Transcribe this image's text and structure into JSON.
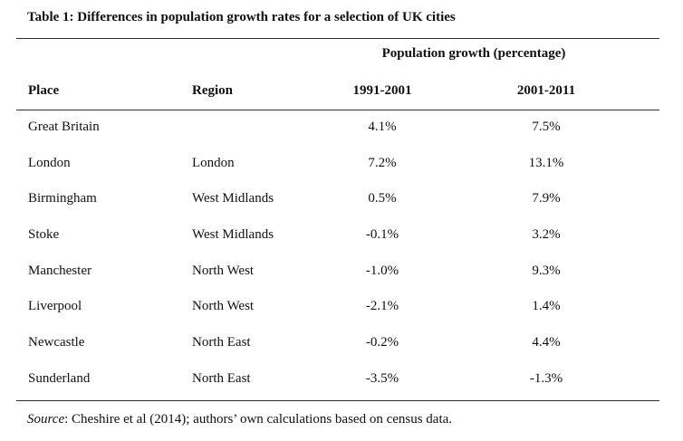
{
  "table": {
    "caption": "Table 1: Differences in population growth rates for a selection of UK cities",
    "group_header": "Population growth (percentage)",
    "columns": {
      "place": "Place",
      "region": "Region",
      "period1": "1991-2001",
      "period2": "2001-2011"
    },
    "rows": [
      {
        "place": "Great Britain",
        "region": "",
        "g1": "4.1%",
        "g2": "7.5%"
      },
      {
        "place": "London",
        "region": "London",
        "g1": "7.2%",
        "g2": "13.1%"
      },
      {
        "place": "Birmingham",
        "region": "West Midlands",
        "g1": "0.5%",
        "g2": "7.9%"
      },
      {
        "place": "Stoke",
        "region": "West Midlands",
        "g1": "-0.1%",
        "g2": "3.2%"
      },
      {
        "place": "Manchester",
        "region": "North West",
        "g1": "-1.0%",
        "g2": "9.3%"
      },
      {
        "place": "Liverpool",
        "region": "North West",
        "g1": "-2.1%",
        "g2": "1.4%"
      },
      {
        "place": "Newcastle",
        "region": "North East",
        "g1": "-0.2%",
        "g2": "4.4%"
      },
      {
        "place": "Sunderland",
        "region": "North East",
        "g1": "-3.5%",
        "g2": "-1.3%"
      }
    ],
    "source_label": "Source",
    "source_text": ": Cheshire et al (2014); authors’ own calculations based on census data."
  }
}
